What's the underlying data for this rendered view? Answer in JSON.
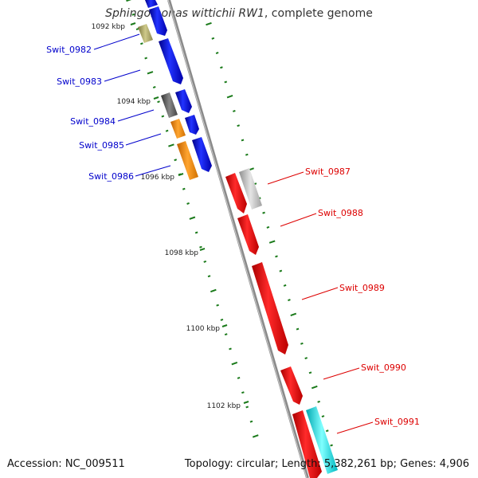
{
  "header": {
    "species": "Sphingomonas wittichii RW1",
    "suffix": ", complete genome"
  },
  "footer": {
    "accession": "Accession: NC_009511",
    "summary": "Topology: circular; Length: 5,382,261 bp; Genes: 4,906"
  },
  "colors": {
    "backbone": "#8a8a8a",
    "tick": "#1a7a1a",
    "forward_label": "#0000cc",
    "reverse_label": "#dd0000"
  },
  "kbp_ticks": [
    "1092 kbp",
    "1094 kbp",
    "1096 kbp",
    "1098 kbp",
    "1100 kbp",
    "1102 kbp"
  ],
  "forward_genes": [
    {
      "id": "Swit_0982",
      "color": "#0000ee"
    },
    {
      "id": "Swit_0983",
      "color": "#0000ee"
    },
    {
      "id": "Swit_0984",
      "color": "#0000ee"
    },
    {
      "id": "Swit_0985",
      "color": "#0000ee"
    },
    {
      "id": "Swit_0986",
      "color": "#0000ee"
    }
  ],
  "reverse_genes": [
    {
      "id": "Swit_0987",
      "color": "#ee0000"
    },
    {
      "id": "Swit_0988",
      "color": "#ee0000"
    },
    {
      "id": "Swit_0989",
      "color": "#ee0000"
    },
    {
      "id": "Swit_0990",
      "color": "#ee0000"
    },
    {
      "id": "Swit_0991",
      "color": "#ee0000"
    }
  ],
  "cog_colors": {
    "olive": "#b5b070",
    "dark_gray": "#666666",
    "orange": "#ff8c00",
    "light_gray": "#c0c0c0",
    "cyan": "#00e8f0"
  }
}
